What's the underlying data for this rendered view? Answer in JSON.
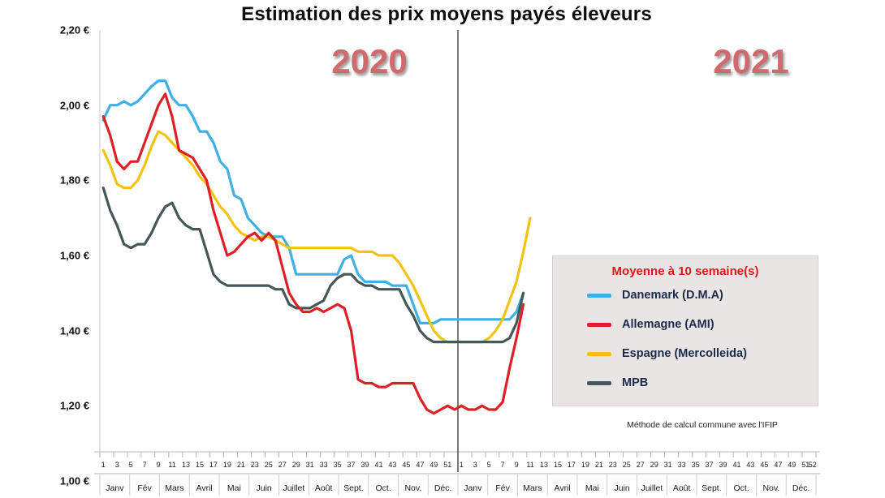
{
  "title": "Estimation des prix moyens payés éleveurs",
  "year_labels": [
    "2020",
    "2021"
  ],
  "y_axis": {
    "labels": [
      "2,20 €",
      "2,00 €",
      "1,80 €",
      "1,60 €",
      "1,40 €",
      "1,20 €",
      "1,00 €"
    ],
    "values": [
      2.2,
      2.0,
      1.8,
      1.6,
      1.4,
      1.2,
      1.0
    ]
  },
  "x_axis": {
    "week_ticks": [
      1,
      3,
      5,
      7,
      9,
      11,
      13,
      15,
      17,
      19,
      21,
      23,
      25,
      27,
      29,
      31,
      33,
      35,
      37,
      39,
      41,
      43,
      45,
      47,
      49,
      51
    ],
    "last_week_label": "52",
    "months": [
      "Janv",
      "Fév",
      "Mars",
      "Avril",
      "Mai",
      "Juin",
      "Juillet",
      "Août",
      "Sept.",
      "Oct.",
      "Nov.",
      "Déc."
    ]
  },
  "legend": {
    "title": "Moyenne à  10 semaine(s)",
    "items": [
      {
        "key": "danemark",
        "label": "Danemark (D.M.A)",
        "color": "#3fb0e4"
      },
      {
        "key": "allemagne",
        "label": "Allemagne (AMI)",
        "color": "#e01e25"
      },
      {
        "key": "espagne",
        "label": "Espagne (Mercolleida)",
        "color": "#f2c313"
      },
      {
        "key": "mpb",
        "label": "MPB",
        "color": "#44585a"
      }
    ],
    "footnote": "Méthode de calcul commune avec l'IFIP"
  },
  "chart_data": {
    "type": "line",
    "title": "Estimation des prix moyens payés éleveurs",
    "x_unit": "week of year",
    "years": [
      2020,
      2021
    ],
    "ylim": [
      1.0,
      2.2
    ],
    "y_tick_step": 0.2,
    "currency": "€",
    "separator_after_week": 52,
    "grid": false,
    "legend_position": "right-middle",
    "series": [
      {
        "name": "Danemark (D.M.A)",
        "key": "danemark",
        "color": "#3fb0e4",
        "values_2020": [
          1.96,
          2.0,
          2.0,
          2.01,
          2.0,
          2.01,
          2.03,
          2.05,
          2.065,
          2.065,
          2.02,
          2.0,
          2.0,
          1.97,
          1.93,
          1.93,
          1.9,
          1.85,
          1.83,
          1.76,
          1.75,
          1.7,
          1.68,
          1.66,
          1.65,
          1.65,
          1.65,
          1.62,
          1.55,
          1.55,
          1.55,
          1.55,
          1.55,
          1.55,
          1.55,
          1.59,
          1.6,
          1.55,
          1.53,
          1.53,
          1.53,
          1.53,
          1.52,
          1.52,
          1.52,
          1.47,
          1.42,
          1.42,
          1.42,
          1.43,
          1.43,
          1.43
        ],
        "values_2021": [
          1.43,
          1.43,
          1.43,
          1.43,
          1.43,
          1.43,
          1.43,
          1.43,
          1.45,
          1.5
        ]
      },
      {
        "name": "Espagne (Mercolleida)",
        "key": "espagne",
        "color": "#f2c313",
        "values_2020": [
          1.88,
          1.84,
          1.79,
          1.78,
          1.78,
          1.8,
          1.84,
          1.89,
          1.93,
          1.92,
          1.9,
          1.88,
          1.86,
          1.84,
          1.81,
          1.79,
          1.76,
          1.73,
          1.71,
          1.68,
          1.66,
          1.65,
          1.64,
          1.65,
          1.65,
          1.64,
          1.63,
          1.62,
          1.62,
          1.62,
          1.62,
          1.62,
          1.62,
          1.62,
          1.62,
          1.62,
          1.62,
          1.61,
          1.61,
          1.61,
          1.6,
          1.6,
          1.6,
          1.58,
          1.55,
          1.52,
          1.48,
          1.44,
          1.4,
          1.38,
          1.37,
          1.37
        ],
        "values_2021": [
          1.37,
          1.37,
          1.37,
          1.37,
          1.38,
          1.4,
          1.43,
          1.48,
          1.53,
          1.61,
          1.7
        ]
      },
      {
        "name": "MPB",
        "key": "mpb",
        "color": "#44585a",
        "values_2020": [
          1.78,
          1.72,
          1.68,
          1.63,
          1.62,
          1.63,
          1.63,
          1.66,
          1.7,
          1.73,
          1.74,
          1.7,
          1.68,
          1.67,
          1.67,
          1.61,
          1.55,
          1.53,
          1.52,
          1.52,
          1.52,
          1.52,
          1.52,
          1.52,
          1.52,
          1.51,
          1.51,
          1.47,
          1.46,
          1.46,
          1.46,
          1.47,
          1.48,
          1.52,
          1.54,
          1.55,
          1.55,
          1.53,
          1.52,
          1.52,
          1.51,
          1.51,
          1.51,
          1.51,
          1.47,
          1.44,
          1.4,
          1.38,
          1.37,
          1.37,
          1.37,
          1.37
        ],
        "values_2021": [
          1.37,
          1.37,
          1.37,
          1.37,
          1.37,
          1.37,
          1.37,
          1.38,
          1.42,
          1.5
        ]
      },
      {
        "name": "Allemagne (AMI)",
        "key": "allemagne",
        "color": "#e01e25",
        "values_2020": [
          1.97,
          1.92,
          1.85,
          1.83,
          1.85,
          1.85,
          1.9,
          1.95,
          2.0,
          2.03,
          1.97,
          1.88,
          1.87,
          1.86,
          1.83,
          1.8,
          1.72,
          1.66,
          1.6,
          1.61,
          1.63,
          1.65,
          1.66,
          1.64,
          1.66,
          1.64,
          1.57,
          1.5,
          1.47,
          1.45,
          1.45,
          1.46,
          1.45,
          1.46,
          1.47,
          1.46,
          1.4,
          1.27,
          1.26,
          1.26,
          1.25,
          1.25,
          1.26,
          1.26,
          1.26,
          1.26,
          1.22,
          1.19,
          1.18,
          1.19,
          1.2,
          1.19
        ],
        "values_2021": [
          1.2,
          1.19,
          1.19,
          1.2,
          1.19,
          1.19,
          1.21,
          1.3,
          1.38,
          1.47
        ]
      }
    ]
  }
}
